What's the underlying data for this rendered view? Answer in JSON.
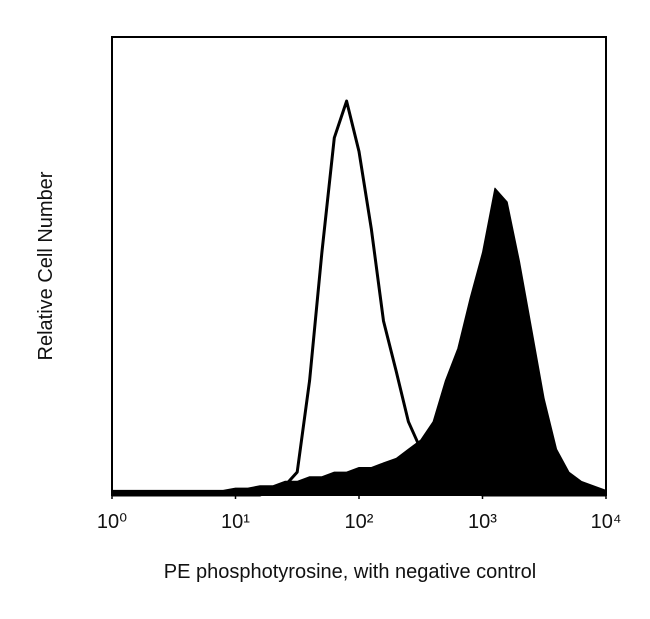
{
  "chart_data": {
    "type": "histogram-overlay",
    "xlabel": "PE phosphotyrosine, with negative control",
    "ylabel": "Relative Cell Number",
    "xscale": "log",
    "xlim": [
      1,
      10000
    ],
    "xticks": [
      {
        "value": 1,
        "label": "10⁰"
      },
      {
        "value": 10,
        "label": "10¹"
      },
      {
        "value": 100,
        "label": "10²"
      },
      {
        "value": 1000,
        "label": "10³"
      },
      {
        "value": 10000,
        "label": "10⁴"
      }
    ],
    "ylim": [
      0,
      100
    ],
    "x": [
      1,
      1.26,
      1.58,
      2,
      2.51,
      3.16,
      3.98,
      5.01,
      6.31,
      7.94,
      10,
      12.6,
      15.8,
      20,
      25.1,
      31.6,
      39.8,
      50.1,
      63.1,
      79.4,
      100,
      126,
      158,
      200,
      251,
      316,
      398,
      501,
      631,
      794,
      1000,
      1259,
      1585,
      1995,
      2512,
      3162,
      3981,
      5012,
      6310,
      7943,
      10000
    ],
    "series": [
      {
        "name": "PE phosphotyrosine",
        "color": "#000000",
        "fill": true,
        "values": [
          1,
          1,
          1,
          1,
          1,
          1,
          1,
          1,
          1,
          1,
          1.5,
          1.5,
          2,
          2,
          3,
          3,
          4,
          4,
          5,
          5,
          6,
          6,
          7,
          8,
          10,
          12,
          16,
          25,
          32,
          43,
          53,
          67,
          64,
          51,
          36,
          21,
          10,
          5,
          3,
          2,
          1
        ]
      },
      {
        "name": "negative control",
        "color": "#000000",
        "fill": false,
        "values": [
          0,
          0,
          0,
          0,
          0,
          0,
          0,
          0,
          0,
          0,
          0,
          0,
          0,
          1,
          2,
          5,
          25,
          53,
          78,
          86,
          75,
          58,
          38,
          27,
          16,
          10,
          5,
          3,
          2,
          1,
          0,
          0,
          0,
          0,
          0,
          0,
          0,
          0,
          0,
          0,
          0
        ]
      }
    ]
  }
}
